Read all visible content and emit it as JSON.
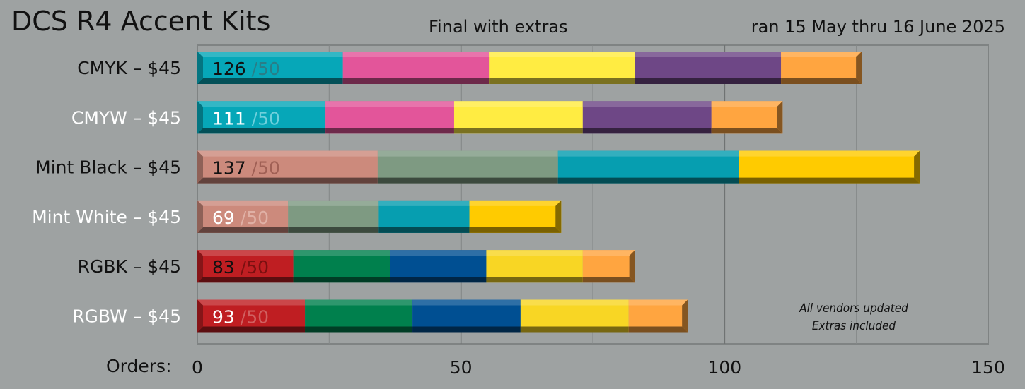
{
  "header": {
    "title": "DCS R4 Accent Kits",
    "subtitle": "Final with extras",
    "date_range": "ran 15 May thru 16 June 2025"
  },
  "x_axis_prefix": "Orders:",
  "annotation_lines": [
    "All vendors updated",
    "Extras included"
  ],
  "chart_data": {
    "type": "bar",
    "orientation": "horizontal",
    "stacked": true,
    "xlim": [
      0,
      150
    ],
    "xticks": [
      0,
      50,
      100,
      150
    ],
    "grid": true,
    "grid_minor_step": 25,
    "categories": [
      "CMYK – $45",
      "CMYW – $45",
      "Mint Black – $45",
      "Mint White – $45",
      "RGBK – $45",
      "RGBW – $45"
    ],
    "category_colors": [
      "#111111",
      "#ffffff",
      "#111111",
      "#ffffff",
      "#111111",
      "#ffffff"
    ],
    "totals": [
      126,
      111,
      137,
      69,
      83,
      93
    ],
    "total_labels": [
      "126",
      "111",
      "137",
      "69",
      "83",
      "93"
    ],
    "goal_labels": [
      "/50",
      "/50",
      "/50",
      "/50",
      "/50",
      "/50"
    ],
    "goal": 50,
    "total_label_colors": [
      "#111111",
      "#ffffff",
      "#111111",
      "#ffffff",
      "#111111",
      "#ffffff"
    ],
    "goal_label_colors": [
      "#2a7d87",
      "#6fd0dc",
      "#a06055",
      "#e0b0a5",
      "#7a1010",
      "#d06060"
    ],
    "segments": [
      [
        {
          "value": 27.6,
          "color": "#06a7b8"
        },
        {
          "value": 27.7,
          "color": "#e3559a"
        },
        {
          "value": 27.7,
          "color": "#ffec42"
        },
        {
          "value": 27.7,
          "color": "#6e4786"
        },
        {
          "value": 15.3,
          "color": "#ffa540"
        }
      ],
      [
        {
          "value": 24.3,
          "color": "#06a7b8"
        },
        {
          "value": 24.4,
          "color": "#e3559a"
        },
        {
          "value": 24.4,
          "color": "#ffec42"
        },
        {
          "value": 24.4,
          "color": "#6e4786"
        },
        {
          "value": 13.5,
          "color": "#ffa540"
        }
      ],
      [
        {
          "value": 34.2,
          "color": "#cc8a7c"
        },
        {
          "value": 34.2,
          "color": "#7e9a82"
        },
        {
          "value": 34.3,
          "color": "#069eb0"
        },
        {
          "value": 34.3,
          "color": "#ffcb00"
        }
      ],
      [
        {
          "value": 17.2,
          "color": "#cc8a7c"
        },
        {
          "value": 17.2,
          "color": "#7e9a82"
        },
        {
          "value": 17.2,
          "color": "#069eb0"
        },
        {
          "value": 17.4,
          "color": "#ffcb00"
        }
      ],
      [
        {
          "value": 18.2,
          "color": "#bf1e22"
        },
        {
          "value": 18.3,
          "color": "#00804d"
        },
        {
          "value": 18.3,
          "color": "#004f92"
        },
        {
          "value": 18.3,
          "color": "#f8d624"
        },
        {
          "value": 9.9,
          "color": "#ffa540"
        }
      ],
      [
        {
          "value": 20.4,
          "color": "#bf1e22"
        },
        {
          "value": 20.4,
          "color": "#00804d"
        },
        {
          "value": 20.5,
          "color": "#004f92"
        },
        {
          "value": 20.5,
          "color": "#f8d624"
        },
        {
          "value": 11.2,
          "color": "#ffa540"
        }
      ]
    ]
  }
}
